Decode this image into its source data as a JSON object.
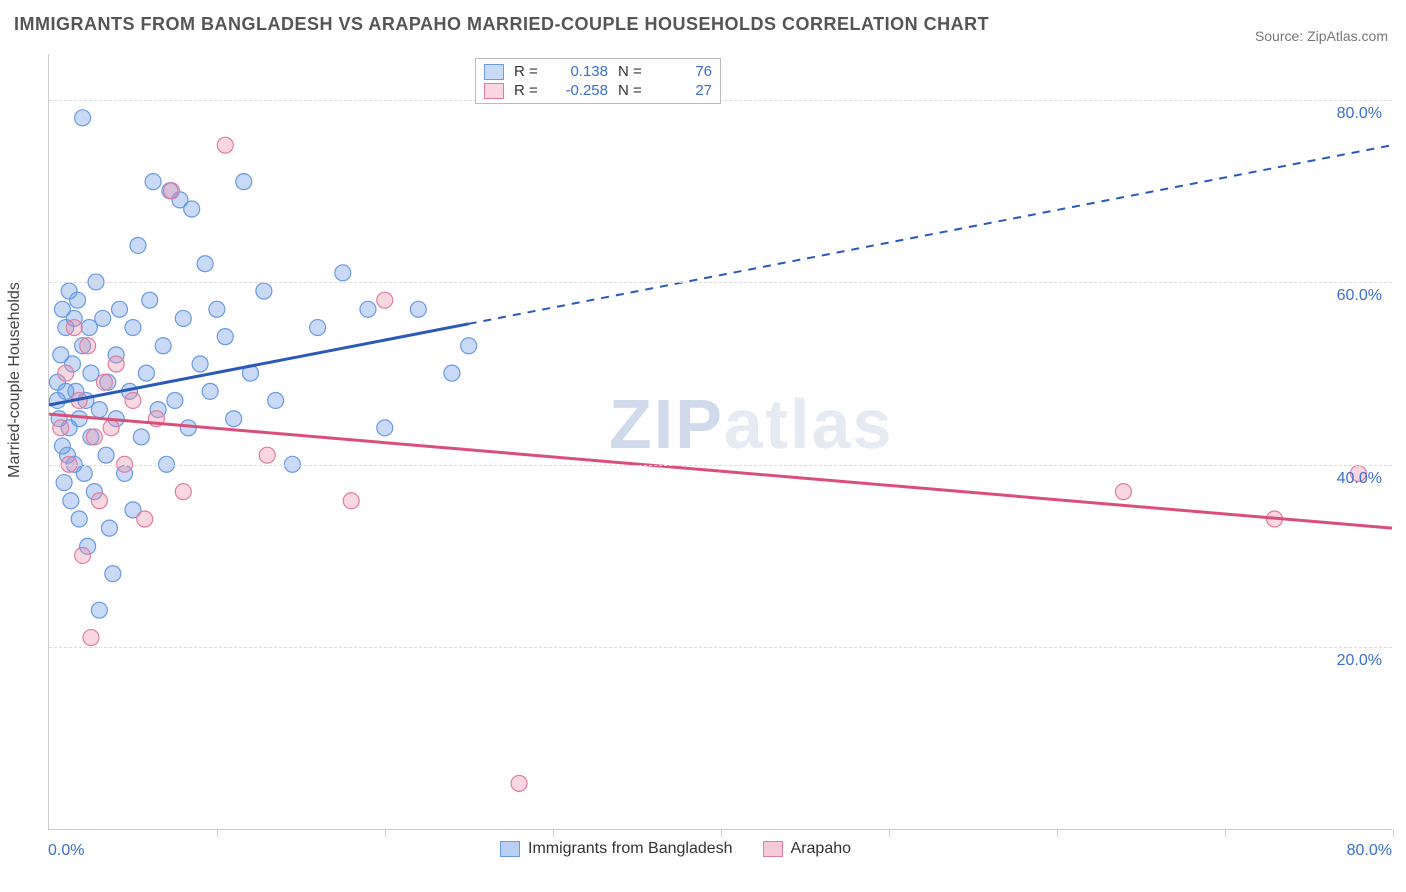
{
  "title": "IMMIGRANTS FROM BANGLADESH VS ARAPAHO MARRIED-COUPLE HOUSEHOLDS CORRELATION CHART",
  "source": "Source: ZipAtlas.com",
  "watermark_text_a": "ZIP",
  "watermark_text_b": "atlas",
  "y_axis_label": "Married-couple Households",
  "chart": {
    "type": "scatter",
    "x_range": [
      0,
      80
    ],
    "y_range": [
      0,
      85
    ],
    "x_origin_label": "0.0%",
    "x_end_label": "80.0%",
    "y_ticks": [
      {
        "value": 20,
        "label": "20.0%"
      },
      {
        "value": 40,
        "label": "40.0%"
      },
      {
        "value": 60,
        "label": "60.0%"
      },
      {
        "value": 80,
        "label": "80.0%"
      }
    ],
    "x_tick_positions": [
      10,
      20,
      30,
      40,
      50,
      60,
      70,
      80
    ],
    "grid_color": "#dddddd",
    "background_color": "#ffffff",
    "series": [
      {
        "name": "Immigrants from Bangladesh",
        "color_fill": "rgba(100,150,230,0.35)",
        "color_stroke": "#6a9ae0",
        "line_color": "#2a59b8",
        "R": "0.138",
        "N": "76",
        "trend": {
          "x1": 0,
          "y1": 46.5,
          "x2": 80,
          "y2": 75,
          "solid_until_x": 25
        },
        "marker_radius": 8,
        "points": [
          [
            0.5,
            47
          ],
          [
            0.5,
            49
          ],
          [
            0.6,
            45
          ],
          [
            0.7,
            52
          ],
          [
            0.8,
            57
          ],
          [
            0.8,
            42
          ],
          [
            0.9,
            38
          ],
          [
            1,
            55
          ],
          [
            1,
            48
          ],
          [
            1.1,
            41
          ],
          [
            1.2,
            59
          ],
          [
            1.2,
            44
          ],
          [
            1.3,
            36
          ],
          [
            1.4,
            51
          ],
          [
            1.5,
            56
          ],
          [
            1.5,
            40
          ],
          [
            1.6,
            48
          ],
          [
            1.7,
            58
          ],
          [
            1.8,
            34
          ],
          [
            1.8,
            45
          ],
          [
            2,
            78
          ],
          [
            2,
            53
          ],
          [
            2.1,
            39
          ],
          [
            2.2,
            47
          ],
          [
            2.3,
            31
          ],
          [
            2.4,
            55
          ],
          [
            2.5,
            43
          ],
          [
            2.5,
            50
          ],
          [
            2.7,
            37
          ],
          [
            2.8,
            60
          ],
          [
            3,
            46
          ],
          [
            3,
            24
          ],
          [
            3.2,
            56
          ],
          [
            3.4,
            41
          ],
          [
            3.5,
            49
          ],
          [
            3.6,
            33
          ],
          [
            3.8,
            28
          ],
          [
            4,
            52
          ],
          [
            4,
            45
          ],
          [
            4.2,
            57
          ],
          [
            4.5,
            39
          ],
          [
            4.8,
            48
          ],
          [
            5,
            55
          ],
          [
            5,
            35
          ],
          [
            5.3,
            64
          ],
          [
            5.5,
            43
          ],
          [
            5.8,
            50
          ],
          [
            6,
            58
          ],
          [
            6.2,
            71
          ],
          [
            6.5,
            46
          ],
          [
            6.8,
            53
          ],
          [
            7,
            40
          ],
          [
            7.2,
            70
          ],
          [
            7.5,
            47
          ],
          [
            7.8,
            69
          ],
          [
            8,
            56
          ],
          [
            8.3,
            44
          ],
          [
            8.5,
            68
          ],
          [
            9,
            51
          ],
          [
            9.3,
            62
          ],
          [
            9.6,
            48
          ],
          [
            10,
            57
          ],
          [
            10.5,
            54
          ],
          [
            11,
            45
          ],
          [
            11.6,
            71
          ],
          [
            12,
            50
          ],
          [
            12.8,
            59
          ],
          [
            13.5,
            47
          ],
          [
            14.5,
            40
          ],
          [
            16,
            55
          ],
          [
            17.5,
            61
          ],
          [
            19,
            57
          ],
          [
            20,
            44
          ],
          [
            22,
            57
          ],
          [
            24,
            50
          ],
          [
            25,
            53
          ]
        ]
      },
      {
        "name": "Arapaho",
        "color_fill": "rgba(235,140,170,0.35)",
        "color_stroke": "#e07da0",
        "line_color": "#d94f7a",
        "R": "-0.258",
        "N": "27",
        "trend": {
          "x1": 0,
          "y1": 45.5,
          "x2": 80,
          "y2": 33,
          "solid_until_x": 80
        },
        "marker_radius": 8,
        "points": [
          [
            0.7,
            44
          ],
          [
            1,
            50
          ],
          [
            1.2,
            40
          ],
          [
            1.5,
            55
          ],
          [
            1.8,
            47
          ],
          [
            2,
            30
          ],
          [
            2.3,
            53
          ],
          [
            2.5,
            21
          ],
          [
            2.7,
            43
          ],
          [
            3,
            36
          ],
          [
            3.3,
            49
          ],
          [
            3.7,
            44
          ],
          [
            4,
            51
          ],
          [
            4.5,
            40
          ],
          [
            5,
            47
          ],
          [
            5.7,
            34
          ],
          [
            6.4,
            45
          ],
          [
            7.3,
            70
          ],
          [
            8,
            37
          ],
          [
            10.5,
            75
          ],
          [
            13,
            41
          ],
          [
            18,
            36
          ],
          [
            20,
            58
          ],
          [
            28,
            5
          ],
          [
            64,
            37
          ],
          [
            73,
            34
          ],
          [
            78,
            39
          ]
        ]
      }
    ]
  },
  "legend_bottom": [
    {
      "label": "Immigrants from Bangladesh",
      "fill": "rgba(100,150,230,0.45)",
      "stroke": "#6a9ae0"
    },
    {
      "label": "Arapaho",
      "fill": "rgba(235,140,170,0.45)",
      "stroke": "#e07da0"
    }
  ]
}
